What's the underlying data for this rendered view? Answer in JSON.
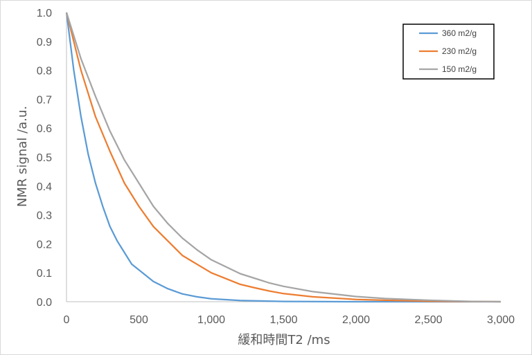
{
  "chart_data": {
    "type": "line",
    "title": "",
    "xlabel": "緩和時間T2 /ms",
    "ylabel": "NMR signal /a.u.",
    "xlim": [
      0,
      3000
    ],
    "ylim": [
      0,
      1.0
    ],
    "x_ticks": [
      0,
      500,
      1000,
      1500,
      2000,
      2500,
      3000
    ],
    "x_tick_labels": [
      "0",
      "500",
      "1,000",
      "1,500",
      "2,000",
      "2,500",
      "3,000"
    ],
    "y_ticks": [
      0,
      0.1,
      0.2,
      0.3,
      0.4,
      0.5,
      0.6,
      0.7,
      0.8,
      0.9,
      1.0
    ],
    "y_tick_labels": [
      "0.0",
      "0.1",
      "0.2",
      "0.3",
      "0.4",
      "0.5",
      "0.6",
      "0.7",
      "0.8",
      "0.9",
      "1.0"
    ],
    "grid": false,
    "legend_position": "top-right",
    "series": [
      {
        "name": "360 m2/g",
        "color": "#5b9bd5",
        "x": [
          0,
          50,
          100,
          150,
          200,
          250,
          300,
          350,
          400,
          450,
          500,
          600,
          700,
          800,
          900,
          1000,
          1200,
          1500,
          2000,
          2500,
          3000
        ],
        "y": [
          1.0,
          0.8,
          0.64,
          0.51,
          0.41,
          0.33,
          0.26,
          0.21,
          0.17,
          0.13,
          0.11,
          0.07,
          0.045,
          0.027,
          0.017,
          0.01,
          0.004,
          0.001,
          0.0,
          0.0,
          0.0
        ]
      },
      {
        "name": "230 m2/g",
        "color": "#ed7d31",
        "x": [
          0,
          100,
          200,
          300,
          400,
          500,
          600,
          700,
          800,
          900,
          1000,
          1100,
          1200,
          1300,
          1400,
          1500,
          1700,
          2000,
          2200,
          2500,
          2800,
          3000
        ],
        "y": [
          1.0,
          0.8,
          0.64,
          0.52,
          0.41,
          0.33,
          0.26,
          0.21,
          0.16,
          0.13,
          0.1,
          0.08,
          0.06,
          0.048,
          0.037,
          0.028,
          0.017,
          0.008,
          0.005,
          0.002,
          0.0005,
          0.0
        ]
      },
      {
        "name": "150 m2/g",
        "color": "#a5a5a5",
        "x": [
          0,
          100,
          200,
          300,
          400,
          500,
          600,
          700,
          800,
          900,
          1000,
          1200,
          1400,
          1500,
          1700,
          2000,
          2200,
          2500,
          2800,
          3000
        ],
        "y": [
          1.0,
          0.84,
          0.71,
          0.59,
          0.49,
          0.41,
          0.33,
          0.27,
          0.22,
          0.18,
          0.145,
          0.097,
          0.065,
          0.053,
          0.035,
          0.018,
          0.011,
          0.005,
          0.001,
          0.0
        ]
      }
    ]
  }
}
